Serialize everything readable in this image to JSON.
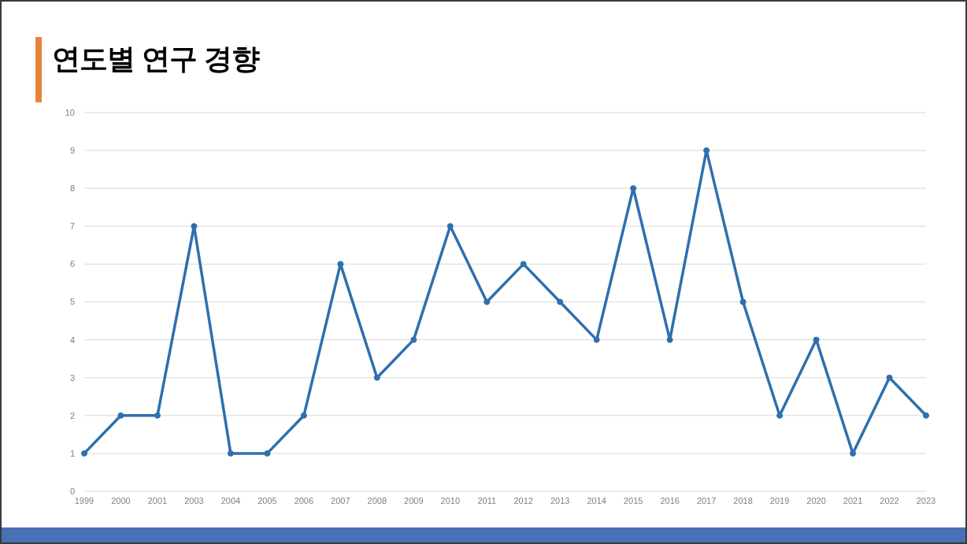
{
  "chart_data": {
    "type": "line",
    "title": "연도별 연구 경향",
    "categories": [
      "1999",
      "2000",
      "2001",
      "2003",
      "2004",
      "2005",
      "2006",
      "2007",
      "2008",
      "2009",
      "2010",
      "2011",
      "2012",
      "2013",
      "2014",
      "2015",
      "2016",
      "2017",
      "2018",
      "2019",
      "2020",
      "2021",
      "2022",
      "2023"
    ],
    "values": [
      1,
      2,
      2,
      7,
      1,
      1,
      2,
      6,
      3,
      4,
      7,
      5,
      6,
      5,
      4,
      8,
      4,
      9,
      5,
      2,
      4,
      1,
      3,
      2
    ],
    "color": "#2f6fae",
    "marker": "circle",
    "line_style": "solid",
    "ylim": [
      0,
      10
    ],
    "yticks": [
      0,
      1,
      2,
      3,
      4,
      5,
      6,
      7,
      8,
      9,
      10
    ],
    "grid": "y"
  }
}
